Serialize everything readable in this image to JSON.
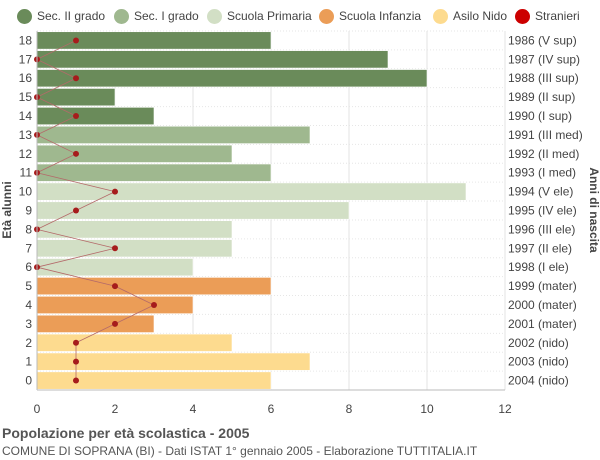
{
  "legend": [
    {
      "label": "Sec. II grado",
      "color": "#6a8b5a"
    },
    {
      "label": "Sec. I grado",
      "color": "#9fb88f"
    },
    {
      "label": "Scuola Primaria",
      "color": "#d2dfc5"
    },
    {
      "label": "Scuola Infanzia",
      "color": "#eb9d57"
    },
    {
      "label": "Asilo Nido",
      "color": "#fddb8f"
    },
    {
      "label": "Stranieri",
      "color": "#cc0000"
    }
  ],
  "title": "Popolazione per età scolastica - 2005",
  "subtitle": "COMUNE DI SOPRANA (BI) - Dati ISTAT 1° gennaio 2005 - Elaborazione TUTTITALIA.IT",
  "chart_data": {
    "type": "bar",
    "orientation": "horizontal",
    "ylabel": "Età alunni",
    "ylabel_right": "Anni di nascita",
    "xlim": [
      0,
      12
    ],
    "xticks": [
      0,
      2,
      4,
      6,
      8,
      10,
      12
    ],
    "grid": true,
    "categories": [
      "18",
      "17",
      "16",
      "15",
      "14",
      "13",
      "12",
      "11",
      "10",
      "9",
      "8",
      "7",
      "6",
      "5",
      "4",
      "3",
      "2",
      "1",
      "0"
    ],
    "birth_years": [
      "1986 (V sup)",
      "1987 (IV sup)",
      "1988 (III sup)",
      "1989 (II sup)",
      "1990 (I sup)",
      "1991 (III med)",
      "1992 (II med)",
      "1993 (I med)",
      "1994 (V ele)",
      "1995 (IV ele)",
      "1996 (III ele)",
      "1997 (II ele)",
      "1998 (I ele)",
      "1999 (mater)",
      "2000 (mater)",
      "2001 (mater)",
      "2002 (nido)",
      "2003 (nido)",
      "2004 (nido)"
    ],
    "values": [
      6,
      9,
      10,
      2,
      3,
      7,
      5,
      6,
      11,
      8,
      5,
      5,
      4,
      6,
      4,
      3,
      5,
      7,
      6
    ],
    "groups": [
      "Sec. II grado",
      "Sec. II grado",
      "Sec. II grado",
      "Sec. II grado",
      "Sec. II grado",
      "Sec. I grado",
      "Sec. I grado",
      "Sec. I grado",
      "Scuola Primaria",
      "Scuola Primaria",
      "Scuola Primaria",
      "Scuola Primaria",
      "Scuola Primaria",
      "Scuola Infanzia",
      "Scuola Infanzia",
      "Scuola Infanzia",
      "Asilo Nido",
      "Asilo Nido",
      "Asilo Nido"
    ],
    "stranieri": [
      1,
      0,
      1,
      0,
      1,
      0,
      1,
      0,
      2,
      1,
      0,
      2,
      0,
      2,
      3,
      2,
      1,
      1,
      1
    ]
  }
}
